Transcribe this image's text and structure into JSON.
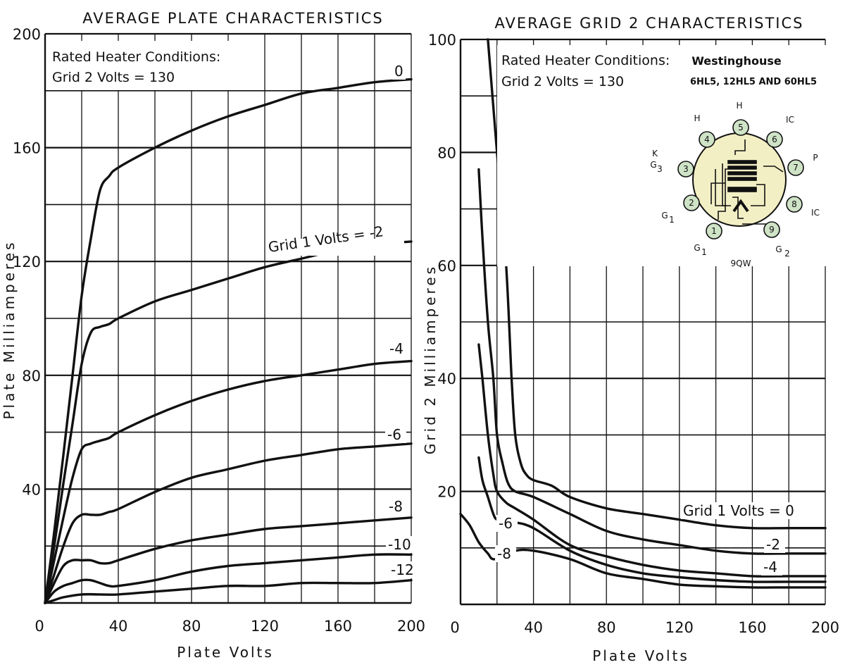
{
  "chart_data": [
    {
      "type": "line",
      "title": "AVERAGE PLATE CHARACTERISTICS",
      "xlabel": "Plate Volts",
      "ylabel": "Plate Milliamperes",
      "xlim": [
        0,
        200
      ],
      "ylim": [
        0,
        200
      ],
      "x_ticks": [
        "0",
        "40",
        "80",
        "120",
        "160",
        "200"
      ],
      "y_ticks": [
        "40",
        "80",
        "120",
        "160",
        "200"
      ],
      "grid": true,
      "annotations": [
        "Rated Heater Conditions:",
        "Grid 2 Volts = 130"
      ],
      "series": [
        {
          "name": "0",
          "points": [
            [
              0,
              0
            ],
            [
              5,
              25
            ],
            [
              10,
              52
            ],
            [
              15,
              80
            ],
            [
              20,
              108
            ],
            [
              25,
              128
            ],
            [
              30,
              145
            ],
            [
              35,
              150
            ],
            [
              40,
              153
            ],
            [
              60,
              160
            ],
            [
              80,
              166
            ],
            [
              100,
              171
            ],
            [
              120,
              175
            ],
            [
              140,
              179
            ],
            [
              160,
              181
            ],
            [
              180,
              183
            ],
            [
              200,
              184
            ]
          ]
        },
        {
          "name": "Grid 1 Volts = -2",
          "points": [
            [
              0,
              0
            ],
            [
              5,
              20
            ],
            [
              10,
              42
            ],
            [
              15,
              63
            ],
            [
              20,
              84
            ],
            [
              25,
              95
            ],
            [
              30,
              97
            ],
            [
              35,
              98
            ],
            [
              40,
              100
            ],
            [
              60,
              106
            ],
            [
              80,
              110
            ],
            [
              100,
              114
            ],
            [
              120,
              118
            ],
            [
              140,
              121
            ],
            [
              160,
              124
            ],
            [
              180,
              126
            ],
            [
              200,
              127
            ]
          ]
        },
        {
          "name": "-4",
          "points": [
            [
              0,
              0
            ],
            [
              5,
              15
            ],
            [
              10,
              30
            ],
            [
              15,
              44
            ],
            [
              20,
              54
            ],
            [
              25,
              56
            ],
            [
              30,
              57
            ],
            [
              35,
              58
            ],
            [
              40,
              60
            ],
            [
              60,
              66
            ],
            [
              80,
              71
            ],
            [
              100,
              75
            ],
            [
              120,
              78
            ],
            [
              140,
              80
            ],
            [
              160,
              82
            ],
            [
              180,
              84
            ],
            [
              200,
              85
            ]
          ]
        },
        {
          "name": "-6",
          "points": [
            [
              0,
              0
            ],
            [
              5,
              10
            ],
            [
              10,
              20
            ],
            [
              15,
              28
            ],
            [
              20,
              31
            ],
            [
              25,
              31
            ],
            [
              30,
              31
            ],
            [
              35,
              32
            ],
            [
              40,
              33
            ],
            [
              60,
              39
            ],
            [
              80,
              44
            ],
            [
              100,
              47
            ],
            [
              120,
              50
            ],
            [
              140,
              52
            ],
            [
              160,
              54
            ],
            [
              180,
              55
            ],
            [
              200,
              56
            ]
          ]
        },
        {
          "name": "-8",
          "points": [
            [
              0,
              0
            ],
            [
              5,
              7
            ],
            [
              10,
              13
            ],
            [
              15,
              15
            ],
            [
              20,
              15
            ],
            [
              25,
              15
            ],
            [
              30,
              14
            ],
            [
              35,
              14
            ],
            [
              40,
              15
            ],
            [
              60,
              19
            ],
            [
              80,
              22
            ],
            [
              100,
              24
            ],
            [
              120,
              26
            ],
            [
              140,
              27
            ],
            [
              160,
              28
            ],
            [
              180,
              29
            ],
            [
              200,
              30
            ]
          ]
        },
        {
          "name": "-10",
          "points": [
            [
              0,
              0
            ],
            [
              5,
              4
            ],
            [
              10,
              6
            ],
            [
              15,
              7
            ],
            [
              20,
              8
            ],
            [
              25,
              8
            ],
            [
              30,
              7
            ],
            [
              35,
              6
            ],
            [
              40,
              6
            ],
            [
              60,
              8
            ],
            [
              80,
              11
            ],
            [
              100,
              13
            ],
            [
              120,
              14
            ],
            [
              140,
              15
            ],
            [
              160,
              16
            ],
            [
              180,
              17
            ],
            [
              200,
              17
            ]
          ]
        },
        {
          "name": "-12",
          "points": [
            [
              0,
              0
            ],
            [
              5,
              1
            ],
            [
              10,
              2
            ],
            [
              20,
              3
            ],
            [
              30,
              3
            ],
            [
              40,
              3
            ],
            [
              60,
              4
            ],
            [
              80,
              5
            ],
            [
              100,
              6
            ],
            [
              120,
              6
            ],
            [
              140,
              7
            ],
            [
              160,
              7
            ],
            [
              180,
              7
            ],
            [
              200,
              8
            ]
          ]
        }
      ]
    },
    {
      "type": "line",
      "title": "AVERAGE GRID 2 CHARACTERISTICS",
      "xlabel": "Plate Volts",
      "ylabel": "Grid 2 Milliamperes",
      "xlim": [
        0,
        200
      ],
      "ylim": [
        0,
        100
      ],
      "x_ticks": [
        "0",
        "40",
        "80",
        "120",
        "160",
        "200"
      ],
      "y_ticks": [
        "20",
        "40",
        "60",
        "80",
        "100"
      ],
      "grid": true,
      "annotations": [
        "Rated Heater Conditions:",
        "Grid 2 Volts = 130"
      ],
      "series": [
        {
          "name": "Grid 1 Volts = 0",
          "points": [
            [
              15,
              100
            ],
            [
              20,
              80
            ],
            [
              25,
              60
            ],
            [
              28,
              40
            ],
            [
              30,
              30
            ],
            [
              33,
              25
            ],
            [
              36,
              23
            ],
            [
              40,
              22
            ],
            [
              50,
              21
            ],
            [
              60,
              19
            ],
            [
              80,
              17
            ],
            [
              100,
              16
            ],
            [
              120,
              15
            ],
            [
              140,
              14
            ],
            [
              160,
              13.5
            ],
            [
              180,
              13.5
            ],
            [
              200,
              13.5
            ]
          ]
        },
        {
          "name": "-2",
          "points": [
            [
              10,
              77
            ],
            [
              12,
              65
            ],
            [
              15,
              50
            ],
            [
              18,
              40
            ],
            [
              20,
              30
            ],
            [
              23,
              25
            ],
            [
              26,
              21.5
            ],
            [
              30,
              20
            ],
            [
              40,
              19
            ],
            [
              60,
              16
            ],
            [
              80,
              13
            ],
            [
              100,
              11.5
            ],
            [
              120,
              10.5
            ],
            [
              140,
              9.5
            ],
            [
              160,
              9
            ],
            [
              180,
              9
            ],
            [
              200,
              9
            ]
          ]
        },
        {
          "name": "-4",
          "points": [
            [
              10,
              46
            ],
            [
              12,
              40
            ],
            [
              15,
              30
            ],
            [
              18,
              23
            ],
            [
              20,
              20
            ],
            [
              25,
              18
            ],
            [
              30,
              17
            ],
            [
              40,
              15
            ],
            [
              60,
              10.5
            ],
            [
              80,
              8.5
            ],
            [
              100,
              7
            ],
            [
              120,
              6
            ],
            [
              140,
              5.5
            ],
            [
              160,
              5
            ],
            [
              180,
              5
            ],
            [
              200,
              5
            ]
          ]
        },
        {
          "name": "-6",
          "points": [
            [
              10,
              26
            ],
            [
              12,
              22
            ],
            [
              15,
              19
            ],
            [
              18,
              16
            ],
            [
              20,
              15
            ],
            [
              25,
              14.5
            ],
            [
              30,
              14.5
            ],
            [
              40,
              13.5
            ],
            [
              60,
              9.5
            ],
            [
              80,
              7
            ],
            [
              100,
              5.5
            ],
            [
              120,
              4.8
            ],
            [
              140,
              4.3
            ],
            [
              160,
              4
            ],
            [
              180,
              4
            ],
            [
              200,
              4
            ]
          ]
        },
        {
          "name": "-8",
          "points": [
            [
              0,
              16
            ],
            [
              5,
              14
            ],
            [
              10,
              11
            ],
            [
              15,
              9
            ],
            [
              18,
              8
            ],
            [
              25,
              8.5
            ],
            [
              30,
              9.5
            ],
            [
              40,
              9.5
            ],
            [
              60,
              8
            ],
            [
              80,
              5.5
            ],
            [
              100,
              4.5
            ],
            [
              120,
              3.5
            ],
            [
              140,
              3.2
            ],
            [
              160,
              3
            ],
            [
              180,
              3
            ],
            [
              200,
              3
            ]
          ]
        }
      ],
      "basing_diagram": {
        "brand": "Westinghouse",
        "models": "6HL5, 12HL5 AND 60HL5",
        "code": "9QW",
        "pins": [
          "1",
          "2",
          "3",
          "4",
          "5",
          "6",
          "7",
          "8",
          "9"
        ],
        "labels": [
          "H",
          "H",
          "IC",
          "K",
          "G",
          "3",
          "P",
          "G",
          "1",
          "IC",
          "G",
          "1",
          "G",
          "2"
        ]
      }
    }
  ]
}
